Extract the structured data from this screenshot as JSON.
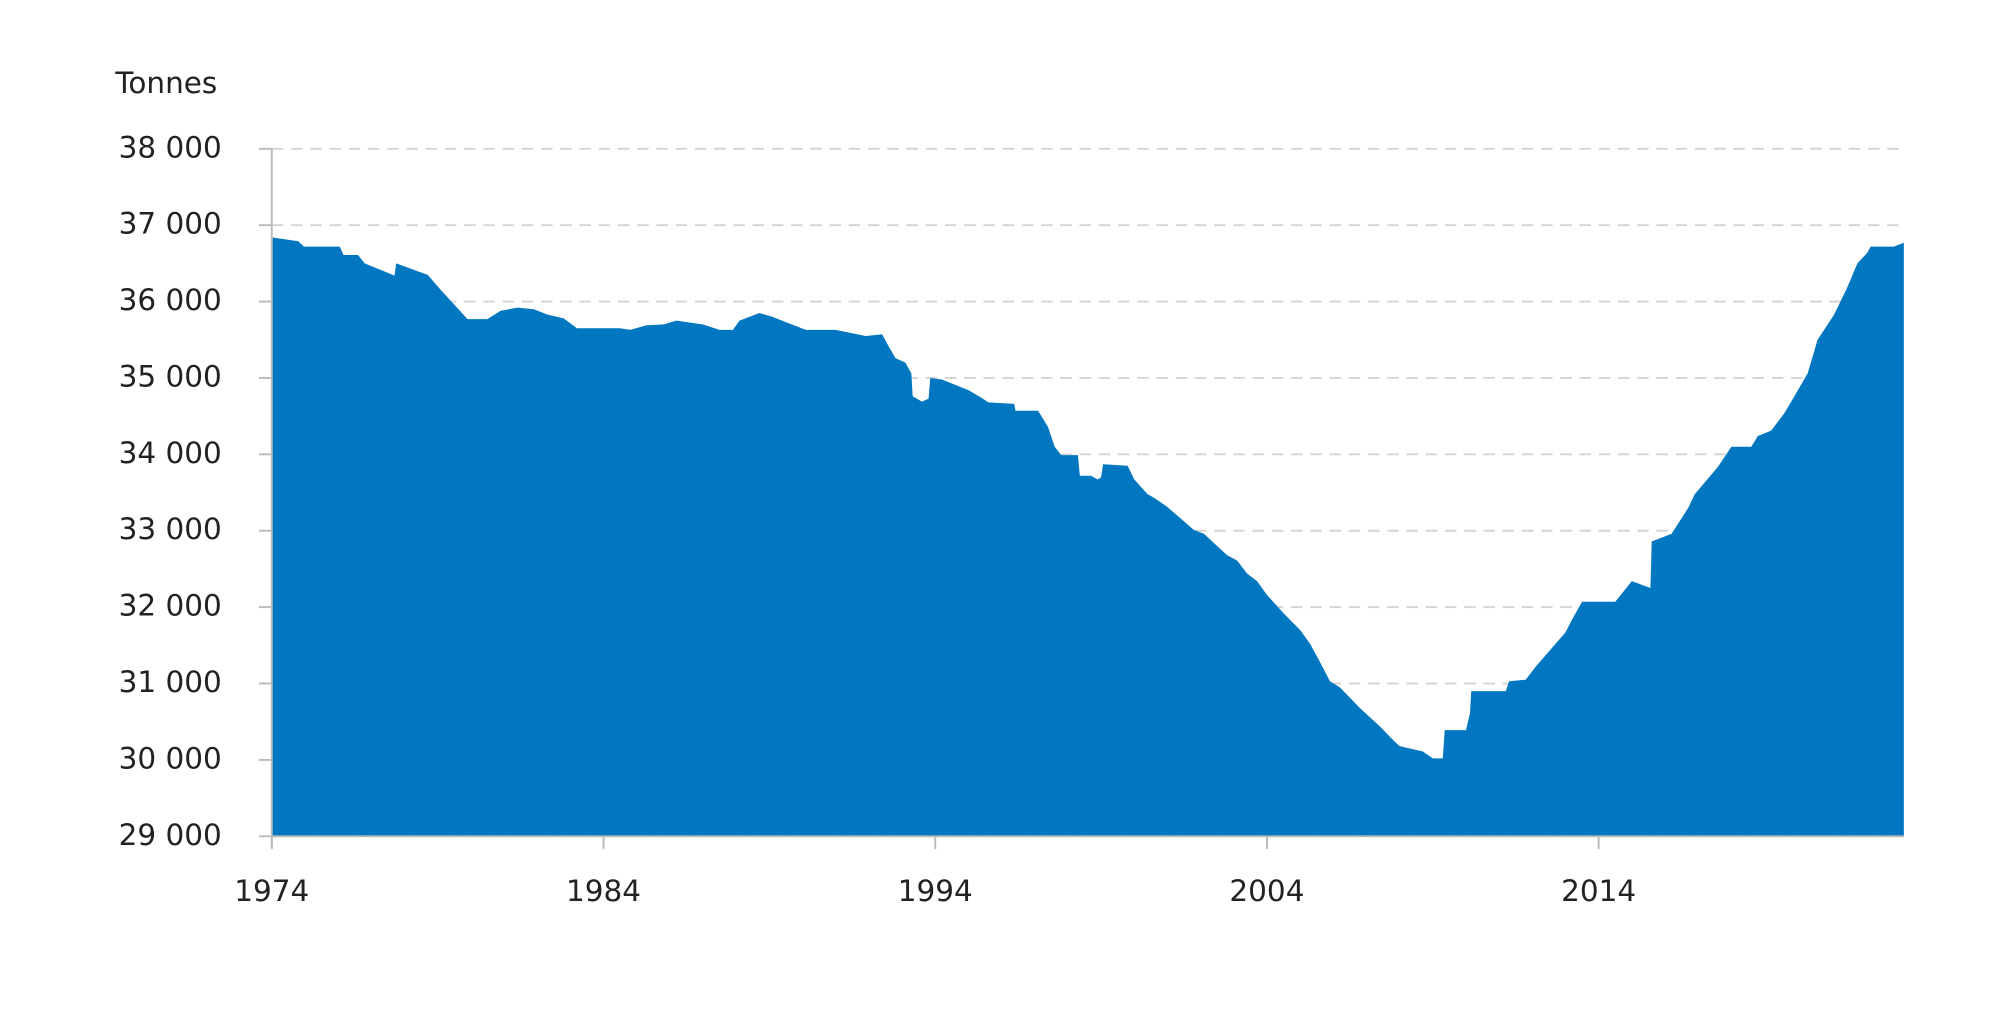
{
  "chart_data": {
    "type": "area",
    "y_label": "Tonnes",
    "color": "#0077c0",
    "grid": true,
    "x": [
      1974.0,
      1974.8,
      1974.97,
      1976.05,
      1976.16,
      1976.6,
      1976.8,
      1977.7,
      1977.75,
      1978.7,
      1979.1,
      1979.9,
      1980.5,
      1980.9,
      1981.4,
      1981.9,
      1982.3,
      1982.8,
      1983.2,
      1984.5,
      1984.8,
      1985.3,
      1985.8,
      1986.2,
      1987.0,
      1987.5,
      1987.9,
      1988.1,
      1988.7,
      1989.1,
      1989.5,
      1990.1,
      1991.0,
      1991.9,
      1992.4,
      1992.6,
      1992.8,
      1993.1,
      1993.28,
      1993.32,
      1993.6,
      1993.8,
      1993.85,
      1994.2,
      1995.0,
      1995.4,
      1995.6,
      1996.38,
      1996.42,
      1997.1,
      1997.4,
      1997.6,
      1997.8,
      1998.3,
      1998.36,
      1998.7,
      1998.9,
      1999.0,
      1999.06,
      1999.8,
      2000.0,
      2000.4,
      2000.6,
      2001.0,
      2001.8,
      2002.1,
      2002.4,
      2002.8,
      2003.1,
      2003.4,
      2003.7,
      2004.0,
      2004.5,
      2005.0,
      2005.3,
      2005.6,
      2005.9,
      2006.2,
      2006.8,
      2007.4,
      2007.8,
      2008.0,
      2008.7,
      2009.0,
      2009.3,
      2009.36,
      2010.0,
      2010.12,
      2010.16,
      2011.2,
      2011.3,
      2011.8,
      2012.1,
      2013.0,
      2013.2,
      2013.5,
      2014.5,
      2015.0,
      2015.56,
      2015.6,
      2016.2,
      2016.7,
      2016.9,
      2017.6,
      2018.0,
      2018.6,
      2018.8,
      2019.2,
      2019.6,
      2019.9,
      2020.3,
      2020.6,
      2021.1,
      2021.5,
      2021.8,
      2022.1,
      2022.2,
      2022.9,
      2023.2
    ],
    "values": [
      36840,
      36790,
      36720,
      36720,
      36610,
      36610,
      36500,
      36340,
      36500,
      36350,
      36150,
      35770,
      35770,
      35880,
      35920,
      35900,
      35830,
      35780,
      35650,
      35650,
      35630,
      35690,
      35700,
      35750,
      35700,
      35630,
      35630,
      35750,
      35850,
      35800,
      35730,
      35630,
      35630,
      35550,
      35570,
      35410,
      35260,
      35200,
      35060,
      34760,
      34690,
      34730,
      35000,
      34980,
      34840,
      34740,
      34680,
      34660,
      34570,
      34570,
      34360,
      34100,
      33990,
      33990,
      33720,
      33720,
      33670,
      33700,
      33870,
      33850,
      33670,
      33480,
      33430,
      33310,
      33010,
      32960,
      32840,
      32680,
      32610,
      32440,
      32340,
      32160,
      31920,
      31700,
      31520,
      31280,
      31030,
      30950,
      30680,
      30440,
      30260,
      30180,
      30110,
      30020,
      30020,
      30390,
      30390,
      30610,
      30900,
      30900,
      31030,
      31050,
      31220,
      31670,
      31840,
      32070,
      32070,
      32340,
      32250,
      32860,
      32960,
      33300,
      33480,
      33840,
      34100,
      34100,
      34240,
      34310,
      34540,
      34760,
      35060,
      35500,
      35830,
      36190,
      36500,
      36640,
      36720,
      36720,
      36770
    ],
    "xlim": [
      1974,
      2023.2
    ],
    "xticks": [
      1974,
      1984,
      1994,
      2004,
      2014
    ],
    "ylim": [
      29000,
      38000
    ],
    "yticks": [
      {
        "value": 29000,
        "label": "29 000"
      },
      {
        "value": 30000,
        "label": "30 000"
      },
      {
        "value": 31000,
        "label": "31 000"
      },
      {
        "value": 32000,
        "label": "32 000"
      },
      {
        "value": 33000,
        "label": "33 000"
      },
      {
        "value": 34000,
        "label": "34 000"
      },
      {
        "value": 35000,
        "label": "35 000"
      },
      {
        "value": 36000,
        "label": "36 000"
      },
      {
        "value": 37000,
        "label": "37 000"
      },
      {
        "value": 38000,
        "label": "38 000"
      }
    ]
  }
}
